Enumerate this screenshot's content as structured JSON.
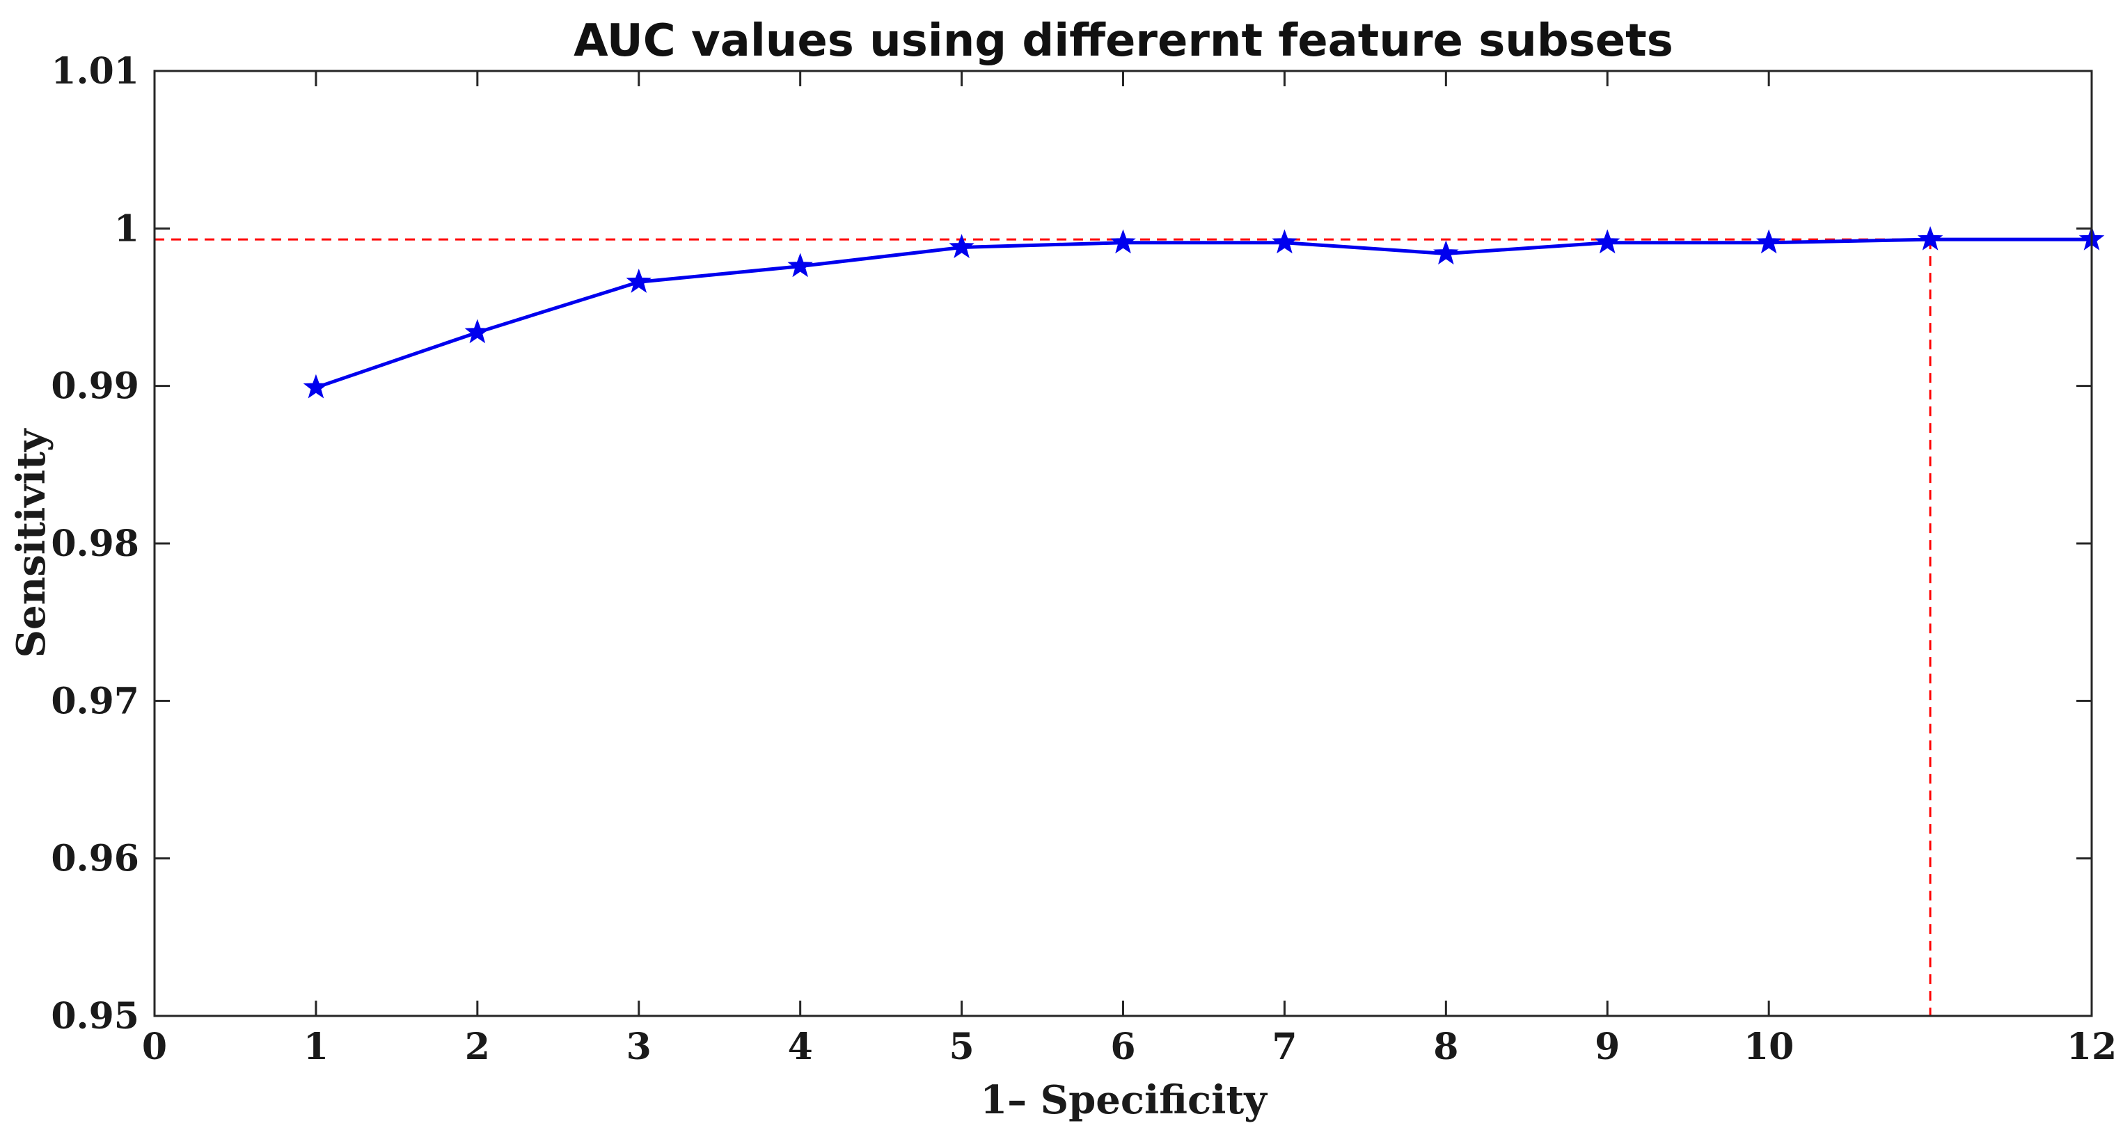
{
  "chart_data": {
    "type": "line",
    "title": "AUC values using differernt feature subsets",
    "xlabel": "1– Specificity",
    "ylabel": "Sensitivity",
    "xlim": [
      0,
      12
    ],
    "ylim": [
      0.95,
      1.01
    ],
    "x_ticks": [
      0,
      1,
      2,
      3,
      4,
      5,
      6,
      7,
      8,
      9,
      10,
      12
    ],
    "x_tick_labels": [
      "0",
      "1",
      "2",
      "3",
      "4",
      "5",
      "6",
      "7",
      "8",
      "9",
      "10",
      "12"
    ],
    "y_ticks": [
      0.95,
      0.96,
      0.97,
      0.98,
      0.99,
      1.0,
      1.01
    ],
    "y_tick_labels": [
      "0.95",
      "0.96",
      "0.97",
      "0.98",
      "0.99",
      "1",
      "1.01"
    ],
    "grid": false,
    "series": [
      {
        "color": "#0000ee",
        "marker": "star",
        "x": [
          1,
          2,
          3,
          4,
          5,
          6,
          7,
          8,
          9,
          10,
          11,
          12
        ],
        "y": [
          0.9899,
          0.9934,
          0.9966,
          0.9976,
          0.9988,
          0.9991,
          0.9991,
          0.9984,
          0.9991,
          0.9991,
          0.9993,
          0.9993
        ]
      }
    ],
    "reference_lines": {
      "color": "#ff0000",
      "style": "dashed",
      "horizontal_y": 0.9993,
      "vertical_x": 11
    }
  }
}
